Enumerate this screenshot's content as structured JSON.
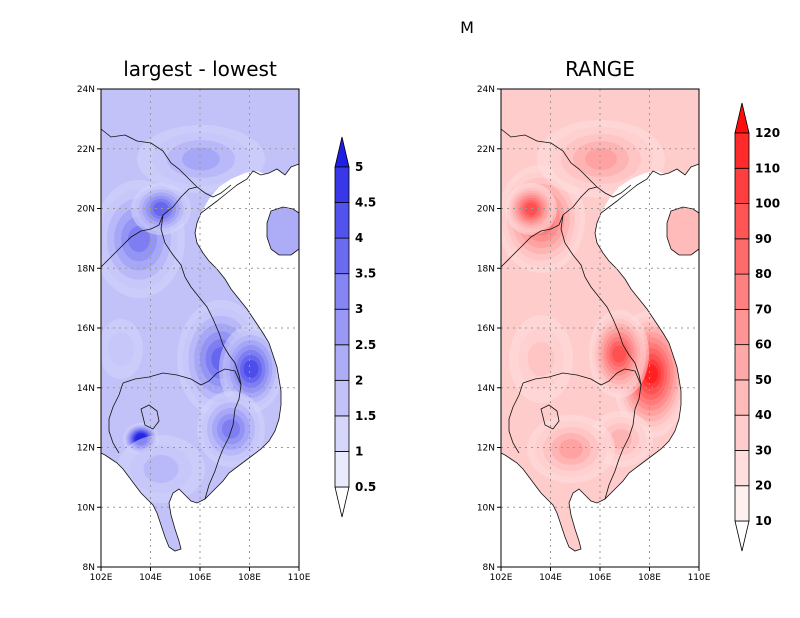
{
  "figure": {
    "supertitle": "M",
    "panels": [
      {
        "title": "largest - lowest",
        "x_ticks": [
          "102E",
          "104E",
          "106E",
          "108E",
          "110E"
        ],
        "y_ticks": [
          "24N",
          "22N",
          "20N",
          "18N",
          "16N",
          "14N",
          "12N",
          "10N",
          "8N"
        ],
        "colorbar": {
          "levels": [
            "0.5",
            "1",
            "1.5",
            "2",
            "2.5",
            "3",
            "3.5",
            "4",
            "4.5",
            "5"
          ],
          "colors": [
            "#ffffff",
            "#eaeafd",
            "#d6d6fb",
            "#c2c2f9",
            "#adadf7",
            "#9999f5",
            "#8585f3",
            "#6b6bf0",
            "#5252ec",
            "#3838e8",
            "#1e1ee4"
          ]
        }
      },
      {
        "title": "RANGE",
        "x_ticks": [
          "102E",
          "104E",
          "106E",
          "108E",
          "110E"
        ],
        "y_ticks": [
          "24N",
          "22N",
          "20N",
          "18N",
          "16N",
          "14N",
          "12N",
          "10N",
          "8N"
        ],
        "colorbar": {
          "levels": [
            "10",
            "20",
            "30",
            "40",
            "50",
            "60",
            "70",
            "80",
            "90",
            "100",
            "110",
            "120"
          ],
          "colors": [
            "#ffffff",
            "#fff0f0",
            "#ffdede",
            "#ffcccc",
            "#ffbaba",
            "#ffa8a8",
            "#ff9494",
            "#ff8080",
            "#ff6b6b",
            "#ff5555",
            "#ff3f3f",
            "#ff2a2a",
            "#ff0d0d"
          ]
        }
      }
    ]
  }
}
